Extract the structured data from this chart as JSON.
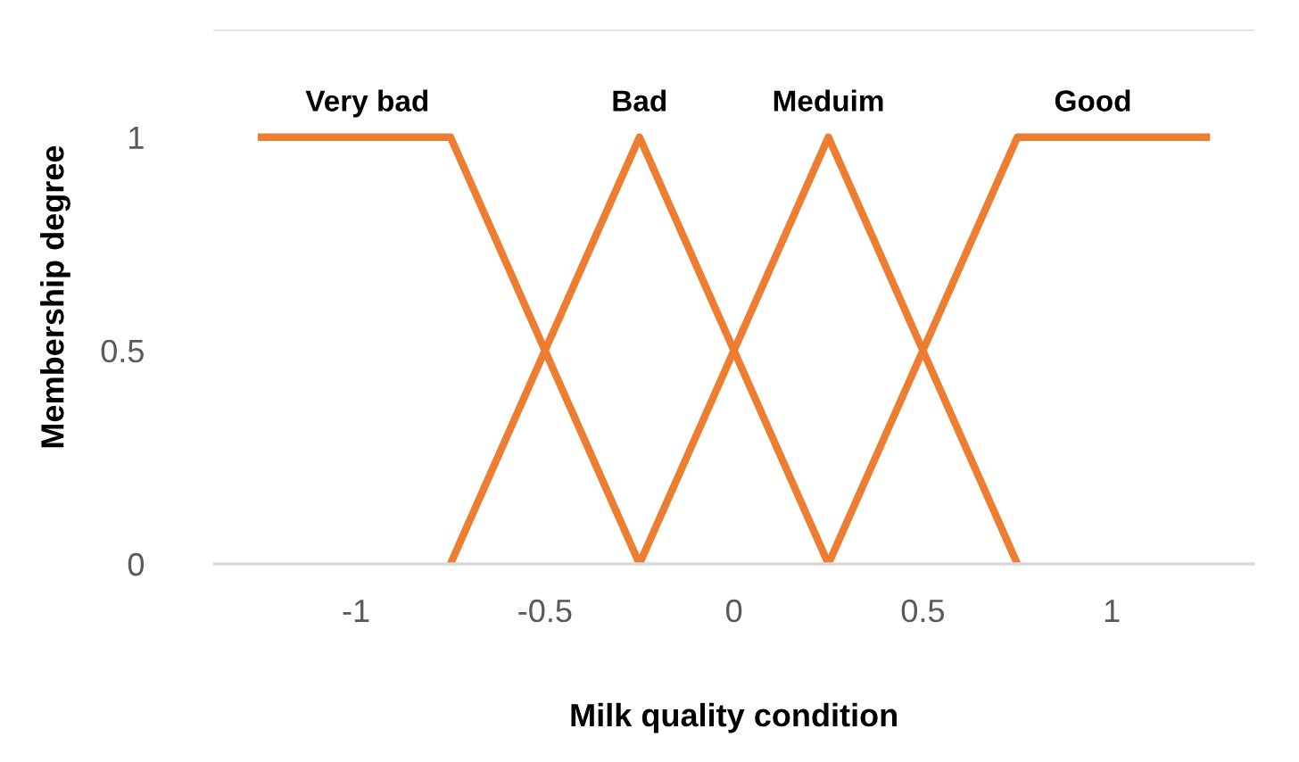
{
  "chart_data": {
    "type": "line",
    "xlabel": "Milk quality condition",
    "ylabel": "Membership degree",
    "xlim": [
      -1.375,
      1.375
    ],
    "ylim": [
      0,
      1.25
    ],
    "xticks": [
      -1,
      -0.5,
      0,
      0.5,
      1
    ],
    "yticks": [
      0,
      0.5,
      1
    ],
    "grid": false,
    "legend": false,
    "marker": "none",
    "line_style": "solid",
    "series": [
      {
        "color": "#ed7d31",
        "x": [
          -1.26,
          -0.75,
          -0.25
        ],
        "values": [
          1,
          1,
          0
        ]
      },
      {
        "color": "#ed7d31",
        "x": [
          -0.75,
          -0.25,
          0.25
        ],
        "values": [
          0,
          1,
          0
        ]
      },
      {
        "color": "#ed7d31",
        "x": [
          -0.25,
          0.25,
          0.75
        ],
        "values": [
          0,
          1,
          0
        ]
      },
      {
        "color": "#ed7d31",
        "x": [
          0.25,
          0.75,
          1.26
        ],
        "values": [
          0,
          1,
          1
        ]
      }
    ],
    "annotations": [
      {
        "text": "Very bad",
        "x": -0.97,
        "y": 1
      },
      {
        "text": "Bad",
        "x": -0.25,
        "y": 1
      },
      {
        "text": "Meduim",
        "x": 0.25,
        "y": 1
      },
      {
        "text": "Good",
        "x": 0.95,
        "y": 1
      }
    ]
  }
}
